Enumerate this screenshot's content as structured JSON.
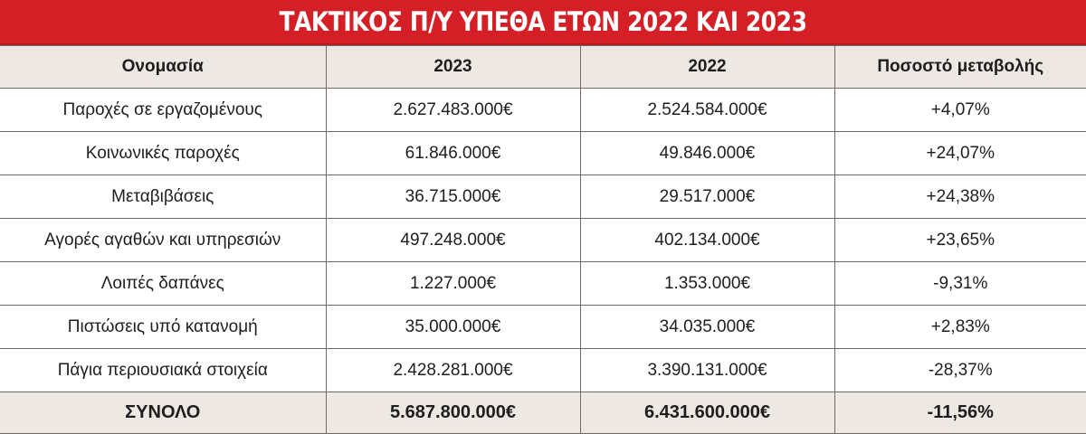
{
  "title": "ΤΑΚΤΙΚΟΣ Π/Υ ΥΠΕΘΑ ΕΤΩΝ 2022 ΚΑΙ 2023",
  "colors": {
    "title_bg": "#d41f26",
    "header_bg": "#ede8e2",
    "border": "#6f6a66"
  },
  "chart_data": {
    "type": "table",
    "title": "ΤΑΚΤΙΚΟΣ Π/Υ ΥΠΕΘΑ ΕΤΩΝ 2022 ΚΑΙ 2023",
    "columns": [
      "Ονομασία",
      "2023",
      "2022",
      "Ποσοστό μεταβολής"
    ],
    "rows": [
      [
        "Παροχές σε εργαζομένους",
        "2.627.483.000€",
        "2.524.584.000€",
        "+4,07%"
      ],
      [
        "Κοινωνικές παροχές",
        "61.846.000€",
        "49.846.000€",
        "+24,07%"
      ],
      [
        "Μεταβιβάσεις",
        "36.715.000€",
        "29.517.000€",
        "+24,38%"
      ],
      [
        "Αγορές αγαθών και υπηρεσιών",
        "497.248.000€",
        "402.134.000€",
        "+23,65%"
      ],
      [
        "Λοιπές δαπάνες",
        "1.227.000€",
        "1.353.000€",
        "-9,31%"
      ],
      [
        "Πιστώσεις υπό κατανομή",
        "35.000.000€",
        "34.035.000€",
        "+2,83%"
      ],
      [
        "Πάγια περιουσιακά στοιχεία",
        "2.428.281.000€",
        "3.390.131.000€",
        "-28,37%"
      ]
    ],
    "total": [
      "ΣΥΝΟΛΟ",
      "5.687.800.000€",
      "6.431.600.000€",
      "-11,56%"
    ]
  }
}
